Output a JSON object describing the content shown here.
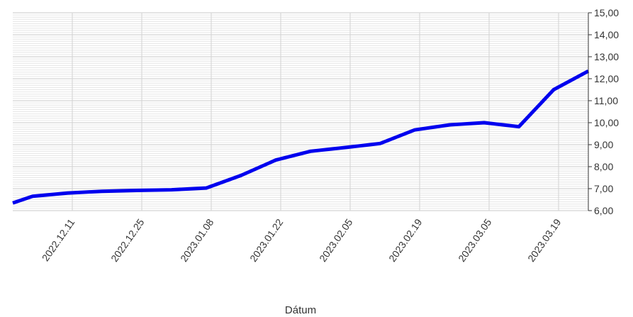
{
  "chart_data": {
    "type": "line",
    "title": "",
    "xlabel": "Dátum",
    "ylabel": "",
    "x_ticks": [
      "2022.12.11",
      "2022.12.25",
      "2023.01.08",
      "2023.01.22",
      "2023.02.05",
      "2023.02.19",
      "2023.03.05",
      "2023.03.19"
    ],
    "y_ticks": [
      "6,00",
      "7,00",
      "8,00",
      "9,00",
      "10,00",
      "11,00",
      "12,00",
      "13,00",
      "14,00",
      "15,00"
    ],
    "ylim": [
      6,
      15
    ],
    "xlim": [
      "2022.11.29",
      "2023.03.25"
    ],
    "y_axis_side": "right",
    "grid": true,
    "legend": "none",
    "series": [
      {
        "color": "#0000ee",
        "points": [
          {
            "x": "2022.11.29",
            "y": 6.35
          },
          {
            "x": "2022.12.03",
            "y": 6.65
          },
          {
            "x": "2022.12.10",
            "y": 6.8
          },
          {
            "x": "2022.12.17",
            "y": 6.88
          },
          {
            "x": "2022.12.24",
            "y": 6.92
          },
          {
            "x": "2022.12.31",
            "y": 6.95
          },
          {
            "x": "2023.01.07",
            "y": 7.03
          },
          {
            "x": "2023.01.14",
            "y": 7.6
          },
          {
            "x": "2023.01.21",
            "y": 8.3
          },
          {
            "x": "2023.01.28",
            "y": 8.7
          },
          {
            "x": "2023.02.04",
            "y": 8.87
          },
          {
            "x": "2023.02.11",
            "y": 9.05
          },
          {
            "x": "2023.02.18",
            "y": 9.67
          },
          {
            "x": "2023.02.25",
            "y": 9.9
          },
          {
            "x": "2023.03.04",
            "y": 10.0
          },
          {
            "x": "2023.03.11",
            "y": 9.82
          },
          {
            "x": "2023.03.18",
            "y": 11.5
          },
          {
            "x": "2023.03.25",
            "y": 12.35
          }
        ]
      }
    ]
  }
}
